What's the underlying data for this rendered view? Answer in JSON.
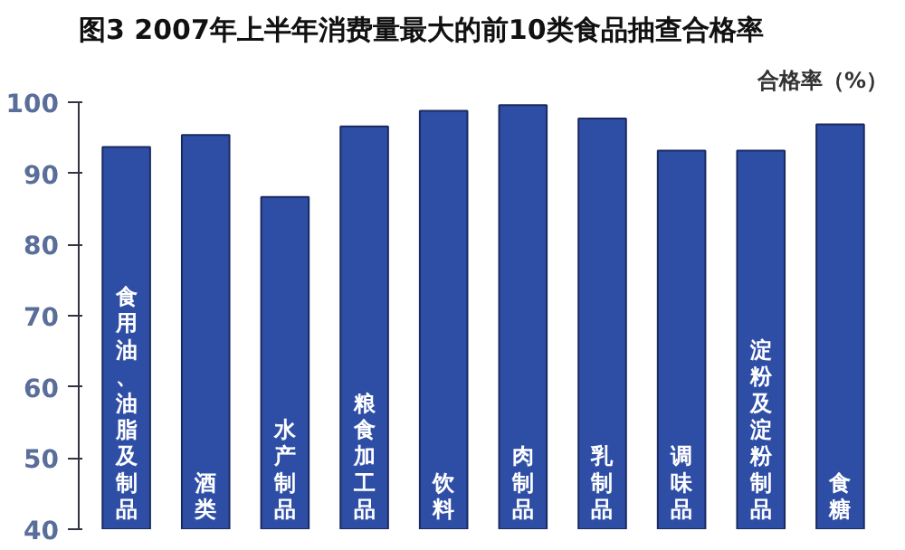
{
  "chart_data": {
    "type": "bar",
    "title": "图3  2007年上半年消费量最大的前10类食品抽查合格率",
    "ylabel": "合格率（%）",
    "categories": [
      "食用油、油脂及制品",
      "酒类",
      "水产制品",
      "粮食加工品",
      "饮料",
      "肉制品",
      "乳制品",
      "调味品",
      "淀粉及淀粉制品",
      "食糖"
    ],
    "values": [
      93.7,
      95.4,
      86.7,
      96.6,
      98.8,
      99.6,
      97.7,
      93.2,
      93.2,
      96.9
    ],
    "color": "#2e4ea6",
    "ylim": [
      40,
      100
    ],
    "yticks": [
      40,
      50,
      60,
      70,
      80,
      90,
      100
    ],
    "grid": false
  }
}
